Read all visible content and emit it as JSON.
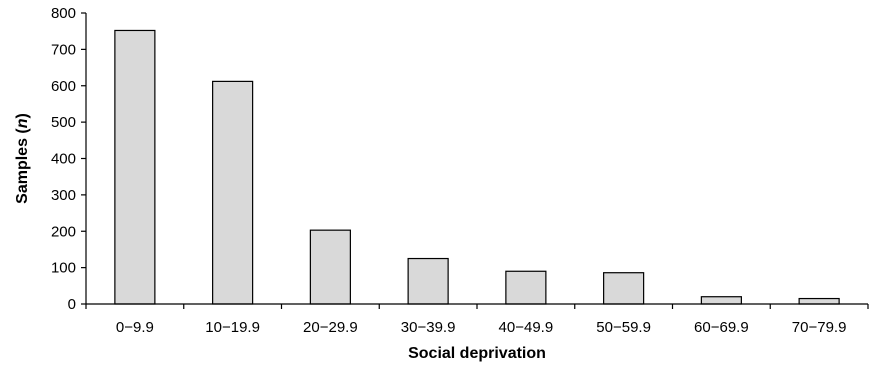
{
  "chart_data": {
    "type": "bar",
    "title": "",
    "xlabel": "Social deprivation",
    "ylabel_prefix": "Samples (",
    "ylabel_var": "n",
    "ylabel_suffix": ")",
    "categories": [
      "0−9.9",
      "10−19.9",
      "20−29.9",
      "30−39.9",
      "40−49.9",
      "50−59.9",
      "60−69.9",
      "70−79.9"
    ],
    "values": [
      752,
      612,
      203,
      125,
      90,
      86,
      20,
      15
    ],
    "ylim": [
      0,
      800
    ],
    "yticks": [
      0,
      100,
      200,
      300,
      400,
      500,
      600,
      700,
      800
    ],
    "ytick_labels": [
      "0",
      "100",
      "200",
      "300",
      "400",
      "500",
      "600",
      "700",
      "800"
    ],
    "grid": false,
    "bar_color": "#d9d9d9",
    "edge_color": "#000000"
  }
}
